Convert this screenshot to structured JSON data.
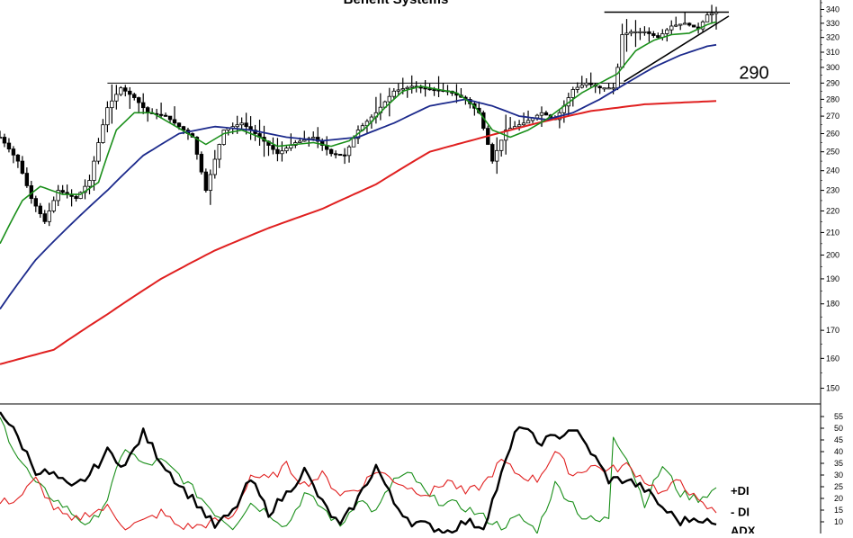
{
  "chart_data": [
    {
      "type": "candlestick",
      "panel": "price",
      "title": "Benefit Systems",
      "y_scale": "log",
      "ylim": [
        145,
        347
      ],
      "y_ticks": [
        340,
        330,
        320,
        310,
        300,
        290,
        280,
        270,
        260,
        250,
        240,
        230,
        220,
        210,
        200,
        190,
        180,
        170,
        160,
        150
      ],
      "x_points": 160,
      "colors": {
        "sma_short": "#1a8f1a",
        "sma_mid": "#1c2a8c",
        "sma_long": "#e02020",
        "bars": "#000000"
      },
      "close_waypoints": [
        [
          0,
          258
        ],
        [
          4,
          245
        ],
        [
          7,
          226
        ],
        [
          10,
          215
        ],
        [
          13,
          230
        ],
        [
          17,
          226
        ],
        [
          20,
          235
        ],
        [
          24,
          275
        ],
        [
          27,
          287
        ],
        [
          30,
          281
        ],
        [
          33,
          272
        ],
        [
          37,
          270
        ],
        [
          40,
          264
        ],
        [
          43,
          258
        ],
        [
          46,
          230
        ],
        [
          50,
          262
        ],
        [
          54,
          266
        ],
        [
          58,
          258
        ],
        [
          62,
          249
        ],
        [
          66,
          255
        ],
        [
          70,
          258
        ],
        [
          74,
          249
        ],
        [
          77,
          248
        ],
        [
          80,
          262
        ],
        [
          84,
          272
        ],
        [
          88,
          285
        ],
        [
          92,
          288
        ],
        [
          96,
          286
        ],
        [
          100,
          285
        ],
        [
          104,
          280
        ],
        [
          107,
          272
        ],
        [
          110,
          245
        ],
        [
          113,
          262
        ],
        [
          117,
          266
        ],
        [
          121,
          272
        ],
        [
          124,
          268
        ],
        [
          126,
          276
        ],
        [
          128,
          286
        ],
        [
          131,
          290
        ],
        [
          134,
          287
        ],
        [
          137,
          287
        ],
        [
          138,
          300
        ],
        [
          139,
          322
        ],
        [
          141,
          324
        ],
        [
          144,
          324
        ],
        [
          147,
          320
        ],
        [
          150,
          328
        ],
        [
          153,
          330
        ],
        [
          156,
          326
        ],
        [
          158,
          336
        ],
        [
          160,
          338
        ]
      ],
      "sma_short_waypoints": [
        [
          0,
          205
        ],
        [
          5,
          225
        ],
        [
          9,
          232
        ],
        [
          14,
          228
        ],
        [
          18,
          228
        ],
        [
          22,
          234
        ],
        [
          26,
          262
        ],
        [
          30,
          272
        ],
        [
          34,
          272
        ],
        [
          38,
          266
        ],
        [
          42,
          260
        ],
        [
          46,
          254
        ],
        [
          50,
          260
        ],
        [
          54,
          262
        ],
        [
          58,
          258
        ],
        [
          62,
          253
        ],
        [
          66,
          254
        ],
        [
          70,
          255
        ],
        [
          74,
          253
        ],
        [
          78,
          256
        ],
        [
          82,
          264
        ],
        [
          86,
          275
        ],
        [
          90,
          285
        ],
        [
          94,
          288
        ],
        [
          98,
          286
        ],
        [
          102,
          284
        ],
        [
          106,
          276
        ],
        [
          110,
          262
        ],
        [
          114,
          258
        ],
        [
          118,
          262
        ],
        [
          122,
          268
        ],
        [
          126,
          276
        ],
        [
          130,
          284
        ],
        [
          134,
          290
        ],
        [
          138,
          296
        ],
        [
          142,
          311
        ],
        [
          146,
          318
        ],
        [
          150,
          322
        ],
        [
          154,
          323
        ],
        [
          158,
          329
        ],
        [
          160,
          331
        ]
      ],
      "sma_mid_waypoints": [
        [
          0,
          178
        ],
        [
          8,
          198
        ],
        [
          16,
          214
        ],
        [
          24,
          230
        ],
        [
          32,
          248
        ],
        [
          40,
          260
        ],
        [
          48,
          264
        ],
        [
          56,
          262
        ],
        [
          64,
          258
        ],
        [
          72,
          256
        ],
        [
          80,
          258
        ],
        [
          88,
          266
        ],
        [
          96,
          276
        ],
        [
          104,
          280
        ],
        [
          110,
          276
        ],
        [
          116,
          270
        ],
        [
          122,
          268
        ],
        [
          128,
          272
        ],
        [
          134,
          280
        ],
        [
          140,
          290
        ],
        [
          146,
          300
        ],
        [
          152,
          308
        ],
        [
          158,
          314
        ],
        [
          160,
          315
        ]
      ],
      "sma_long_waypoints": [
        [
          0,
          158
        ],
        [
          12,
          163
        ],
        [
          24,
          176
        ],
        [
          36,
          190
        ],
        [
          48,
          202
        ],
        [
          60,
          212
        ],
        [
          72,
          221
        ],
        [
          84,
          233
        ],
        [
          96,
          250
        ],
        [
          108,
          258
        ],
        [
          120,
          266
        ],
        [
          132,
          273
        ],
        [
          144,
          277
        ],
        [
          160,
          279
        ]
      ],
      "resistance_line": {
        "value": 290,
        "x_from": 24,
        "x_to": 160
      },
      "upper_line": {
        "value": 338,
        "x_from": 134,
        "x_to": 160
      },
      "trend_line": {
        "from": [
          139,
          291
        ],
        "to": [
          160,
          330
        ]
      },
      "annotations": [
        "290"
      ]
    },
    {
      "type": "line",
      "panel": "indicator",
      "y_ticks": [
        55,
        50,
        45,
        40,
        35,
        30,
        25,
        20,
        15,
        10
      ],
      "ylim": [
        5,
        60
      ],
      "series": [
        {
          "name": "+DI",
          "color": "#1a8f1a",
          "values_waypoints": [
            [
              0,
              54
            ],
            [
              4,
              38
            ],
            [
              8,
              26
            ],
            [
              12,
              20
            ],
            [
              16,
              14
            ],
            [
              20,
              8
            ],
            [
              24,
              20
            ],
            [
              28,
              42
            ],
            [
              32,
              34
            ],
            [
              36,
              36
            ],
            [
              40,
              30
            ],
            [
              44,
              22
            ],
            [
              48,
              14
            ],
            [
              52,
              8
            ],
            [
              56,
              18
            ],
            [
              60,
              14
            ],
            [
              64,
              8
            ],
            [
              68,
              22
            ],
            [
              72,
              16
            ],
            [
              76,
              8
            ],
            [
              80,
              20
            ],
            [
              84,
              14
            ],
            [
              88,
              28
            ],
            [
              92,
              30
            ],
            [
              96,
              20
            ],
            [
              100,
              18
            ],
            [
              104,
              16
            ],
            [
              108,
              12
            ],
            [
              112,
              8
            ],
            [
              116,
              12
            ],
            [
              120,
              6
            ],
            [
              124,
              26
            ],
            [
              128,
              18
            ],
            [
              130,
              12
            ],
            [
              134,
              10
            ],
            [
              136,
              12
            ],
            [
              137,
              47
            ],
            [
              140,
              38
            ],
            [
              144,
              18
            ],
            [
              148,
              34
            ],
            [
              152,
              22
            ],
            [
              156,
              20
            ],
            [
              160,
              24
            ]
          ]
        },
        {
          "name": "- DI",
          "color": "#e02020",
          "values_waypoints": [
            [
              0,
              18
            ],
            [
              4,
              20
            ],
            [
              8,
              28
            ],
            [
              12,
              16
            ],
            [
              16,
              10
            ],
            [
              20,
              14
            ],
            [
              24,
              16
            ],
            [
              28,
              8
            ],
            [
              32,
              10
            ],
            [
              36,
              14
            ],
            [
              40,
              8
            ],
            [
              44,
              8
            ],
            [
              48,
              10
            ],
            [
              52,
              12
            ],
            [
              56,
              30
            ],
            [
              60,
              28
            ],
            [
              64,
              34
            ],
            [
              68,
              26
            ],
            [
              72,
              30
            ],
            [
              76,
              22
            ],
            [
              80,
              24
            ],
            [
              84,
              32
            ],
            [
              88,
              28
            ],
            [
              92,
              24
            ],
            [
              96,
              22
            ],
            [
              100,
              28
            ],
            [
              104,
              22
            ],
            [
              108,
              26
            ],
            [
              112,
              36
            ],
            [
              116,
              30
            ],
            [
              120,
              28
            ],
            [
              124,
              40
            ],
            [
              128,
              30
            ],
            [
              132,
              34
            ],
            [
              136,
              32
            ],
            [
              140,
              34
            ],
            [
              144,
              28
            ],
            [
              148,
              22
            ],
            [
              152,
              28
            ],
            [
              156,
              18
            ],
            [
              160,
              14
            ]
          ]
        },
        {
          "name": "ADX",
          "color": "#000000",
          "values_waypoints": [
            [
              0,
              58
            ],
            [
              4,
              46
            ],
            [
              8,
              32
            ],
            [
              12,
              30
            ],
            [
              16,
              24
            ],
            [
              20,
              30
            ],
            [
              24,
              40
            ],
            [
              28,
              34
            ],
            [
              32,
              48
            ],
            [
              36,
              36
            ],
            [
              40,
              26
            ],
            [
              44,
              18
            ],
            [
              48,
              8
            ],
            [
              52,
              14
            ],
            [
              56,
              28
            ],
            [
              60,
              14
            ],
            [
              64,
              22
            ],
            [
              68,
              32
            ],
            [
              72,
              18
            ],
            [
              76,
              8
            ],
            [
              80,
              20
            ],
            [
              84,
              34
            ],
            [
              88,
              18
            ],
            [
              92,
              10
            ],
            [
              96,
              8
            ],
            [
              100,
              6
            ],
            [
              104,
              10
            ],
            [
              108,
              8
            ],
            [
              112,
              30
            ],
            [
              116,
              52
            ],
            [
              120,
              44
            ],
            [
              124,
              46
            ],
            [
              128,
              50
            ],
            [
              132,
              40
            ],
            [
              136,
              28
            ],
            [
              140,
              28
            ],
            [
              144,
              24
            ],
            [
              148,
              16
            ],
            [
              152,
              10
            ],
            [
              156,
              12
            ],
            [
              160,
              8
            ]
          ]
        }
      ]
    }
  ]
}
